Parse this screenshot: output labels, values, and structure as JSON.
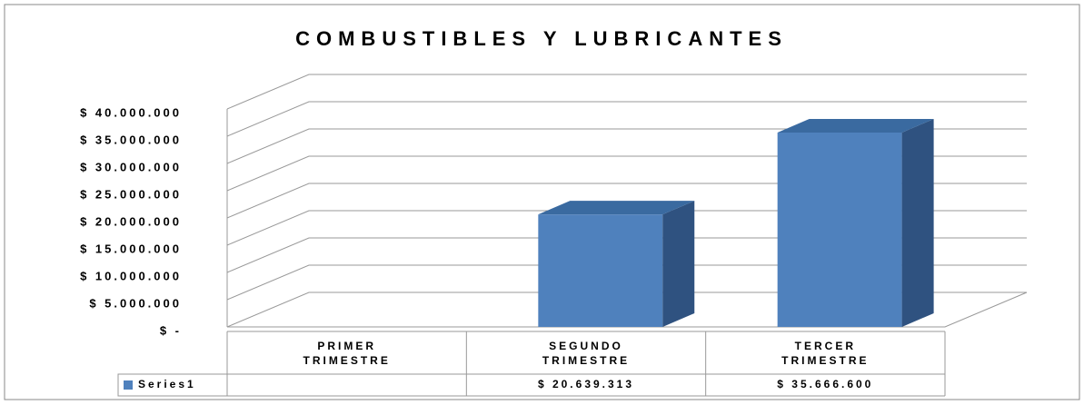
{
  "chart_data": {
    "type": "bar3d",
    "title": "COMBUSTIBLES Y LUBRICANTES",
    "categories": [
      "PRIMER TRIMESTRE",
      "SEGUNDO TRIMESTRE",
      "TERCER TRIMESTRE"
    ],
    "series": [
      {
        "name": "Series1",
        "color": "#4f81bd",
        "values": [
          null,
          20639313,
          35666600
        ],
        "value_labels": [
          null,
          "$ 20.639.313",
          "$ 35.666.600"
        ]
      }
    ],
    "ylim": [
      0,
      40000000
    ],
    "yticks": [
      {
        "value": 0,
        "label": "$ -"
      },
      {
        "value": 5000000,
        "label": "$ 5.000.000"
      },
      {
        "value": 10000000,
        "label": "$ 10.000.000"
      },
      {
        "value": 15000000,
        "label": "$ 15.000.000"
      },
      {
        "value": 20000000,
        "label": "$ 20.000.000"
      },
      {
        "value": 25000000,
        "label": "$ 25.000.000"
      },
      {
        "value": 30000000,
        "label": "$ 30.000.000"
      },
      {
        "value": 35000000,
        "label": "$ 35.000.000"
      },
      {
        "value": 40000000,
        "label": "$ 40.000.000"
      }
    ],
    "grid": true,
    "legend": "table"
  }
}
